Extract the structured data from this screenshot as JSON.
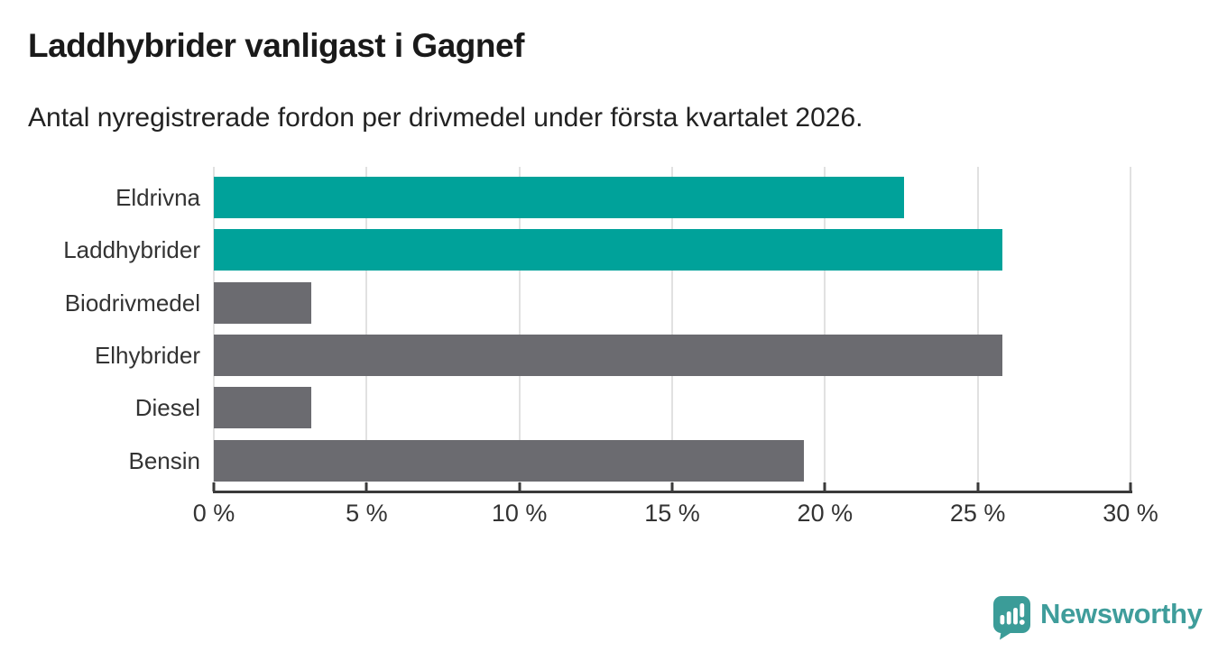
{
  "header": {
    "title": "Laddhybrider vanligast i Gagnef",
    "subtitle": "Antal nyregistrerade fordon per drivmedel under första kvartalet 2026."
  },
  "chart_data": {
    "type": "bar",
    "orientation": "horizontal",
    "title": "Laddhybrider vanligast i Gagnef",
    "subtitle": "Antal nyregistrerade fordon per drivmedel under första kvartalet 2026.",
    "categories": [
      "Eldrivna",
      "Laddhybrider",
      "Biodrivmedel",
      "Elhybrider",
      "Diesel",
      "Bensin"
    ],
    "values": [
      22.6,
      25.8,
      3.2,
      25.8,
      3.2,
      19.3
    ],
    "unit": "%",
    "bar_colors": [
      "#00a29a",
      "#00a29a",
      "#6b6b70",
      "#6b6b70",
      "#6b6b70",
      "#6b6b70"
    ],
    "xlim": [
      0,
      30
    ],
    "x_ticks": [
      0,
      5,
      10,
      15,
      20,
      25,
      30
    ],
    "x_tick_labels": [
      "0 %",
      "5 %",
      "10 %",
      "15 %",
      "20 %",
      "25 %",
      "30 %"
    ],
    "xlabel": "",
    "ylabel": "",
    "grid": true,
    "legend": false
  },
  "colors": {
    "highlight_teal": "#00a29a",
    "neutral_gray": "#6b6b70",
    "gridline": "#e1e1e1",
    "axis": "#3a3a3a",
    "text": "#333333",
    "brand_teal": "#3f9d9b"
  },
  "logo": {
    "brand": "Newsworthy"
  }
}
